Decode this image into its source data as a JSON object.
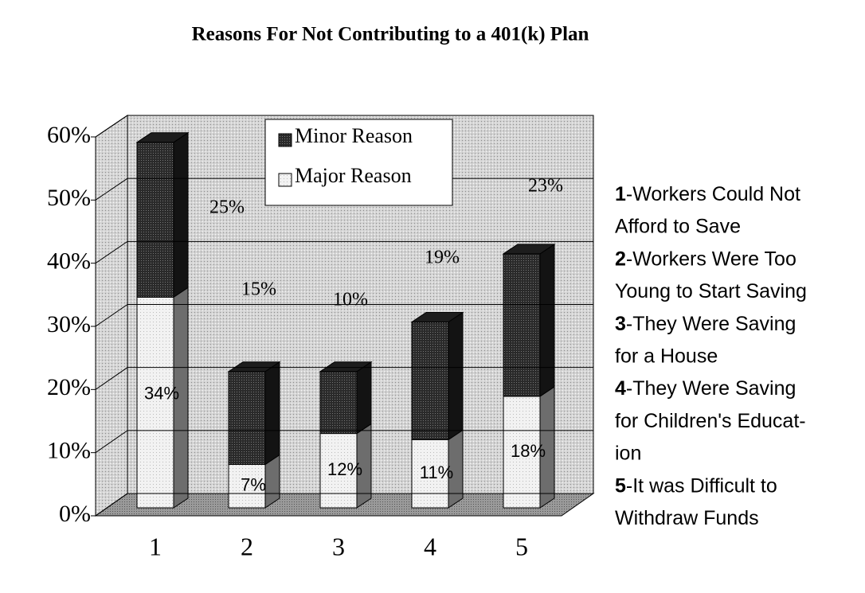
{
  "chart_data": {
    "type": "bar",
    "stacked": true,
    "title": "Reasons For Not Contributing to a 401(k) Plan",
    "categories": [
      "1",
      "2",
      "3",
      "4",
      "5"
    ],
    "series": [
      {
        "name": "Major Reason",
        "color": "#f2f2f2",
        "values": [
          34,
          7,
          12,
          11,
          18
        ],
        "value_labels": [
          "34%",
          "7%",
          "12%",
          "11%",
          "18%"
        ]
      },
      {
        "name": "Minor Reason",
        "color": "#2a2a2a",
        "values": [
          25,
          15,
          10,
          19,
          23
        ],
        "value_labels": [
          "25%",
          "15%",
          "10%",
          "19%",
          "23%"
        ]
      }
    ],
    "ylim": [
      0,
      60
    ],
    "yticks": [
      {
        "value": 0,
        "label": "0%"
      },
      {
        "value": 10,
        "label": "10%"
      },
      {
        "value": 20,
        "label": "20%"
      },
      {
        "value": 30,
        "label": "30%"
      },
      {
        "value": 40,
        "label": "40%"
      },
      {
        "value": 50,
        "label": "50%"
      },
      {
        "value": 60,
        "label": "60%"
      }
    ],
    "grid": true,
    "legend": "top",
    "notes": [
      {
        "key": "1",
        "lines": [
          "-Workers Could Not",
          "Afford to Save"
        ]
      },
      {
        "key": "2",
        "lines": [
          "-Workers Were Too",
          "Young to Start Saving"
        ]
      },
      {
        "key": "3",
        "lines": [
          "-They Were Saving",
          "for a House"
        ]
      },
      {
        "key": "4",
        "lines": [
          "-They Were Saving",
          "for Children's Educat-",
          "ion"
        ]
      },
      {
        "key": "5",
        "lines": [
          "-It was Difficult to",
          "Withdraw Funds"
        ]
      }
    ]
  }
}
